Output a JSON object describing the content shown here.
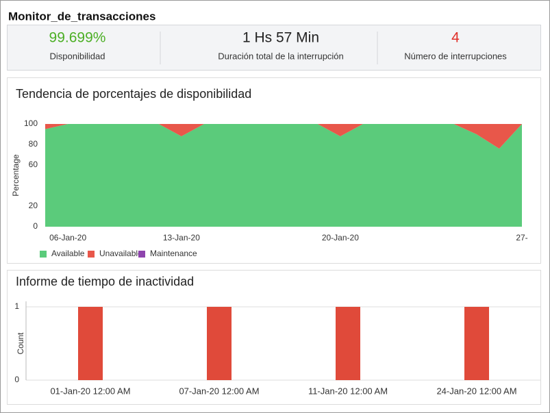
{
  "header": {
    "title": "Monitor_de_transacciones"
  },
  "summary": [
    {
      "value": "99.699%",
      "label": "Disponibilidad",
      "color": "#4caf25"
    },
    {
      "value": "1 Hs 57 Min",
      "label": "Duración total de la interrupción",
      "color": "#222222"
    },
    {
      "value": "4",
      "label": "Número de interrupciones",
      "color": "#e0302a"
    }
  ],
  "chart_data": [
    {
      "type": "area",
      "title": "Tendencia de porcentajes de disponibilidad",
      "stacked": true,
      "categories": [
        null,
        "06-Jan-20",
        null,
        null,
        null,
        null,
        "13-Jan-20",
        null,
        null,
        null,
        null,
        null,
        null,
        "20-Jan-20",
        null,
        null,
        null,
        null,
        null,
        null,
        null,
        "27-"
      ],
      "series": [
        {
          "name": "Available",
          "color": "#5bcb7b",
          "values": [
            95,
            100,
            100,
            100,
            100,
            100,
            88,
            100,
            100,
            100,
            100,
            100,
            100,
            88,
            100,
            100,
            100,
            100,
            100,
            90,
            76,
            100
          ]
        },
        {
          "name": "Unavailable",
          "color": "#e8574a",
          "values": [
            5,
            0,
            0,
            0,
            0,
            0,
            12,
            0,
            0,
            0,
            0,
            0,
            0,
            12,
            0,
            0,
            0,
            0,
            0,
            10,
            24,
            0
          ]
        },
        {
          "name": "Maintenance",
          "color": "#8e44ad",
          "values": [
            0,
            0,
            0,
            0,
            0,
            0,
            0,
            0,
            0,
            0,
            0,
            0,
            0,
            0,
            0,
            0,
            0,
            0,
            0,
            0,
            0,
            0
          ]
        }
      ],
      "ylabel": "Percentage",
      "ylim": [
        0,
        100
      ],
      "yticks": [
        0,
        20,
        60,
        80,
        100
      ],
      "legend": "bottom-left"
    },
    {
      "type": "bar",
      "title": "Informe de tiempo de inactividad",
      "categories": [
        "01-Jan-20 12:00 AM",
        "07-Jan-20 12:00 AM",
        "11-Jan-20 12:00 AM",
        "24-Jan-20 12:00 AM"
      ],
      "values": [
        1,
        1,
        1,
        1
      ],
      "color": "#e04a3a",
      "ylabel": "Count",
      "ylim": [
        0,
        1
      ],
      "yticks": [
        0,
        1
      ],
      "grid": true
    }
  ]
}
